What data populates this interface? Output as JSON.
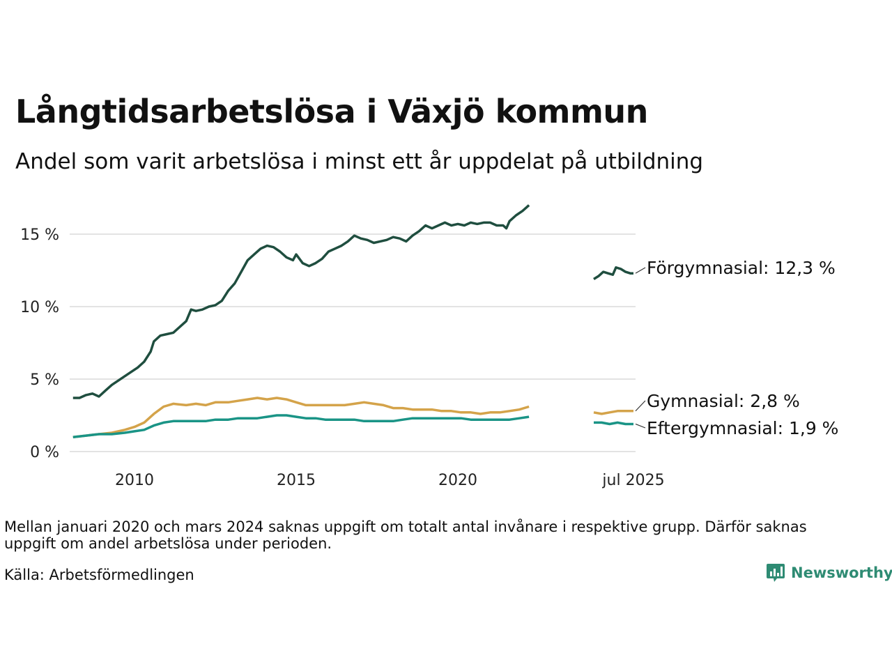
{
  "title": "Långtidsarbetslösa i Växjö kommun",
  "subtitle": "Andel som varit arbetslösa i minst ett år uppdelat på utbildning",
  "note": "Mellan januari 2020 och mars 2024 saknas uppgift om totalt antal invånare i respektive grupp. Därför saknas uppgift om andel arbetslösa under perioden.",
  "source": "Källa: Arbetsförmedlingen",
  "brand": "Newsworthy",
  "chart_data": {
    "type": "line",
    "ylim": [
      0,
      17
    ],
    "yticks": [
      {
        "value": 0,
        "label": "0 %"
      },
      {
        "value": 5,
        "label": "5 %"
      },
      {
        "value": 10,
        "label": "10 %"
      },
      {
        "value": 15,
        "label": "15 %"
      }
    ],
    "xticks": [
      {
        "value": 2010,
        "label": "2010"
      },
      {
        "value": 2015,
        "label": "2015"
      },
      {
        "value": 2020,
        "label": "2020"
      }
    ],
    "xtick_recent_label": "jul 2025",
    "grid": true,
    "legend": "direct labels at line ends, right",
    "series": [
      {
        "name": "Förgymnasial",
        "end_label": "Förgymnasial: 12,3 %",
        "color": "#1f4e3f",
        "points": [
          [
            2008.1,
            3.7
          ],
          [
            2008.3,
            3.7
          ],
          [
            2008.5,
            3.9
          ],
          [
            2008.7,
            4.0
          ],
          [
            2008.9,
            3.8
          ],
          [
            2009.1,
            4.2
          ],
          [
            2009.3,
            4.6
          ],
          [
            2009.5,
            4.9
          ],
          [
            2009.7,
            5.2
          ],
          [
            2009.9,
            5.5
          ],
          [
            2010.1,
            5.8
          ],
          [
            2010.3,
            6.2
          ],
          [
            2010.5,
            6.9
          ],
          [
            2010.6,
            7.6
          ],
          [
            2010.8,
            8.0
          ],
          [
            2011.0,
            8.1
          ],
          [
            2011.2,
            8.2
          ],
          [
            2011.4,
            8.6
          ],
          [
            2011.6,
            9.0
          ],
          [
            2011.75,
            9.8
          ],
          [
            2011.9,
            9.7
          ],
          [
            2012.1,
            9.8
          ],
          [
            2012.3,
            10.0
          ],
          [
            2012.5,
            10.1
          ],
          [
            2012.7,
            10.4
          ],
          [
            2012.9,
            11.1
          ],
          [
            2013.1,
            11.6
          ],
          [
            2013.3,
            12.4
          ],
          [
            2013.5,
            13.2
          ],
          [
            2013.7,
            13.6
          ],
          [
            2013.9,
            14.0
          ],
          [
            2014.1,
            14.2
          ],
          [
            2014.3,
            14.1
          ],
          [
            2014.5,
            13.8
          ],
          [
            2014.7,
            13.4
          ],
          [
            2014.9,
            13.2
          ],
          [
            2015.0,
            13.6
          ],
          [
            2015.2,
            13.0
          ],
          [
            2015.4,
            12.8
          ],
          [
            2015.6,
            13.0
          ],
          [
            2015.8,
            13.3
          ],
          [
            2016.0,
            13.8
          ],
          [
            2016.2,
            14.0
          ],
          [
            2016.4,
            14.2
          ],
          [
            2016.6,
            14.5
          ],
          [
            2016.8,
            14.9
          ],
          [
            2017.0,
            14.7
          ],
          [
            2017.2,
            14.6
          ],
          [
            2017.4,
            14.4
          ],
          [
            2017.6,
            14.5
          ],
          [
            2017.8,
            14.6
          ],
          [
            2018.0,
            14.8
          ],
          [
            2018.2,
            14.7
          ],
          [
            2018.4,
            14.5
          ],
          [
            2018.6,
            14.9
          ],
          [
            2018.8,
            15.2
          ],
          [
            2019.0,
            15.6
          ],
          [
            2019.2,
            15.4
          ],
          [
            2019.4,
            15.6
          ],
          [
            2019.6,
            15.8
          ],
          [
            2019.8,
            15.6
          ],
          [
            2020.0,
            15.7
          ],
          [
            2020.2,
            15.6
          ],
          [
            2020.4,
            15.8
          ],
          [
            2020.6,
            15.7
          ],
          [
            2020.8,
            15.8
          ],
          [
            2021.0,
            15.8
          ],
          [
            2021.2,
            15.6
          ],
          [
            2021.4,
            15.6
          ],
          [
            2021.5,
            15.4
          ],
          [
            2021.6,
            15.9
          ],
          [
            2021.8,
            16.3
          ],
          [
            2022.0,
            16.6
          ],
          [
            2022.2,
            17.0
          ]
        ],
        "recent_points": [
          [
            2024.25,
            11.9
          ],
          [
            2024.4,
            12.1
          ],
          [
            2024.55,
            12.4
          ],
          [
            2024.7,
            12.3
          ],
          [
            2024.85,
            12.2
          ],
          [
            2024.95,
            12.7
          ],
          [
            2025.1,
            12.6
          ],
          [
            2025.25,
            12.4
          ],
          [
            2025.4,
            12.3
          ],
          [
            2025.5,
            12.3
          ]
        ]
      },
      {
        "name": "Gymnasial",
        "end_label": "Gymnasial:  2,8 %",
        "color": "#d4a34a",
        "points": [
          [
            2008.1,
            1.0
          ],
          [
            2008.5,
            1.1
          ],
          [
            2008.9,
            1.2
          ],
          [
            2009.3,
            1.3
          ],
          [
            2009.7,
            1.5
          ],
          [
            2010.0,
            1.7
          ],
          [
            2010.3,
            2.0
          ],
          [
            2010.6,
            2.6
          ],
          [
            2010.9,
            3.1
          ],
          [
            2011.2,
            3.3
          ],
          [
            2011.6,
            3.2
          ],
          [
            2011.9,
            3.3
          ],
          [
            2012.2,
            3.2
          ],
          [
            2012.5,
            3.4
          ],
          [
            2012.9,
            3.4
          ],
          [
            2013.2,
            3.5
          ],
          [
            2013.5,
            3.6
          ],
          [
            2013.8,
            3.7
          ],
          [
            2014.1,
            3.6
          ],
          [
            2014.4,
            3.7
          ],
          [
            2014.7,
            3.6
          ],
          [
            2015.0,
            3.4
          ],
          [
            2015.3,
            3.2
          ],
          [
            2015.6,
            3.2
          ],
          [
            2015.9,
            3.2
          ],
          [
            2016.2,
            3.2
          ],
          [
            2016.5,
            3.2
          ],
          [
            2016.8,
            3.3
          ],
          [
            2017.1,
            3.4
          ],
          [
            2017.4,
            3.3
          ],
          [
            2017.7,
            3.2
          ],
          [
            2018.0,
            3.0
          ],
          [
            2018.3,
            3.0
          ],
          [
            2018.6,
            2.9
          ],
          [
            2018.9,
            2.9
          ],
          [
            2019.2,
            2.9
          ],
          [
            2019.5,
            2.8
          ],
          [
            2019.8,
            2.8
          ],
          [
            2020.1,
            2.7
          ],
          [
            2020.4,
            2.7
          ],
          [
            2020.7,
            2.6
          ],
          [
            2021.0,
            2.7
          ],
          [
            2021.3,
            2.7
          ],
          [
            2021.6,
            2.8
          ],
          [
            2021.9,
            2.9
          ],
          [
            2022.2,
            3.1
          ]
        ],
        "recent_points": [
          [
            2024.25,
            2.7
          ],
          [
            2024.5,
            2.6
          ],
          [
            2024.75,
            2.7
          ],
          [
            2025.0,
            2.8
          ],
          [
            2025.25,
            2.8
          ],
          [
            2025.5,
            2.8
          ]
        ]
      },
      {
        "name": "Eftergymnasial",
        "end_label": "Eftergymnasial:  1,9 %",
        "color": "#1a9486",
        "points": [
          [
            2008.1,
            1.0
          ],
          [
            2008.5,
            1.1
          ],
          [
            2008.9,
            1.2
          ],
          [
            2009.3,
            1.2
          ],
          [
            2009.7,
            1.3
          ],
          [
            2010.0,
            1.4
          ],
          [
            2010.3,
            1.5
          ],
          [
            2010.6,
            1.8
          ],
          [
            2010.9,
            2.0
          ],
          [
            2011.2,
            2.1
          ],
          [
            2011.6,
            2.1
          ],
          [
            2011.9,
            2.1
          ],
          [
            2012.2,
            2.1
          ],
          [
            2012.5,
            2.2
          ],
          [
            2012.9,
            2.2
          ],
          [
            2013.2,
            2.3
          ],
          [
            2013.5,
            2.3
          ],
          [
            2013.8,
            2.3
          ],
          [
            2014.1,
            2.4
          ],
          [
            2014.4,
            2.5
          ],
          [
            2014.7,
            2.5
          ],
          [
            2015.0,
            2.4
          ],
          [
            2015.3,
            2.3
          ],
          [
            2015.6,
            2.3
          ],
          [
            2015.9,
            2.2
          ],
          [
            2016.2,
            2.2
          ],
          [
            2016.5,
            2.2
          ],
          [
            2016.8,
            2.2
          ],
          [
            2017.1,
            2.1
          ],
          [
            2017.4,
            2.1
          ],
          [
            2017.7,
            2.1
          ],
          [
            2018.0,
            2.1
          ],
          [
            2018.3,
            2.2
          ],
          [
            2018.6,
            2.3
          ],
          [
            2018.9,
            2.3
          ],
          [
            2019.2,
            2.3
          ],
          [
            2019.5,
            2.3
          ],
          [
            2019.8,
            2.3
          ],
          [
            2020.1,
            2.3
          ],
          [
            2020.4,
            2.2
          ],
          [
            2020.7,
            2.2
          ],
          [
            2021.0,
            2.2
          ],
          [
            2021.3,
            2.2
          ],
          [
            2021.6,
            2.2
          ],
          [
            2021.9,
            2.3
          ],
          [
            2022.2,
            2.4
          ]
        ],
        "recent_points": [
          [
            2024.25,
            2.0
          ],
          [
            2024.5,
            2.0
          ],
          [
            2024.75,
            1.9
          ],
          [
            2025.0,
            2.0
          ],
          [
            2025.25,
            1.9
          ],
          [
            2025.5,
            1.9
          ]
        ]
      }
    ]
  }
}
